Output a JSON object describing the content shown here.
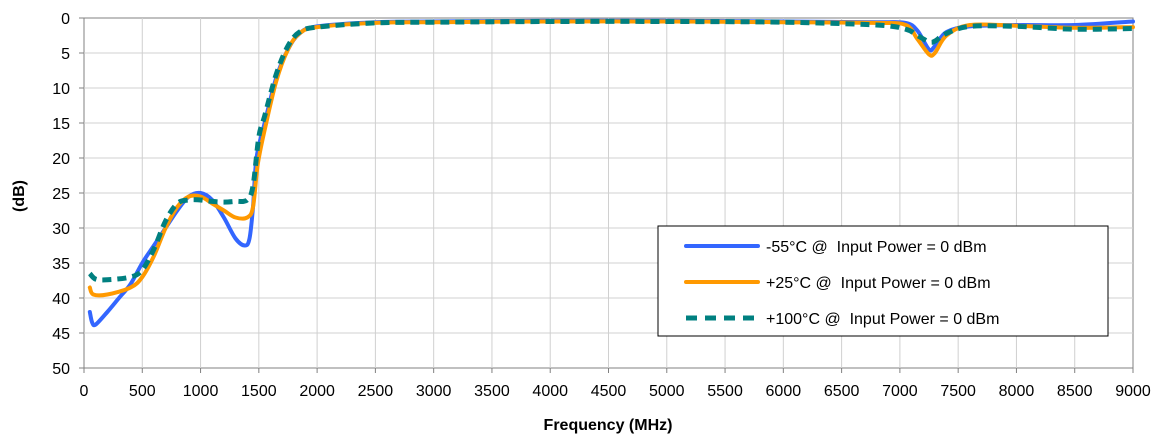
{
  "chart_data": {
    "type": "line",
    "xlabel": "Frequency (MHz)",
    "ylabel": "(dB)",
    "xlim": [
      0,
      9000
    ],
    "ylim": [
      0,
      50
    ],
    "y_reversed": true,
    "xticks": [
      "0",
      "500",
      "1000",
      "1500",
      "2000",
      "2500",
      "3000",
      "3500",
      "4000",
      "4500",
      "5000",
      "5500",
      "6000",
      "6500",
      "7000",
      "7500",
      "8000",
      "8500",
      "9000"
    ],
    "yticks": [
      "0",
      "5",
      "10",
      "15",
      "20",
      "25",
      "30",
      "35",
      "40",
      "45",
      "50"
    ],
    "grid": true,
    "legend_position": "right",
    "series": [
      {
        "name": "-55°C @  Input Power = 0 dBm",
        "color": "#3366ff",
        "style": "solid",
        "points": [
          [
            50,
            42
          ],
          [
            70,
            43.5
          ],
          [
            100,
            43.8
          ],
          [
            200,
            42
          ],
          [
            300,
            40
          ],
          [
            400,
            38
          ],
          [
            500,
            35
          ],
          [
            600,
            32.5
          ],
          [
            700,
            30
          ],
          [
            800,
            27.5
          ],
          [
            900,
            25.5
          ],
          [
            1000,
            25
          ],
          [
            1100,
            26
          ],
          [
            1200,
            28.5
          ],
          [
            1300,
            31.5
          ],
          [
            1380,
            32.5
          ],
          [
            1420,
            31.5
          ],
          [
            1450,
            27
          ],
          [
            1480,
            20
          ],
          [
            1550,
            15
          ],
          [
            1650,
            8.5
          ],
          [
            1750,
            4.5
          ],
          [
            1850,
            2.2
          ],
          [
            2000,
            1.2
          ],
          [
            2500,
            0.6
          ],
          [
            3000,
            0.5
          ],
          [
            4000,
            0.4
          ],
          [
            5000,
            0.4
          ],
          [
            6000,
            0.5
          ],
          [
            6800,
            0.6
          ],
          [
            7050,
            0.7
          ],
          [
            7150,
            1.8
          ],
          [
            7250,
            4.5
          ],
          [
            7300,
            4
          ],
          [
            7400,
            2
          ],
          [
            7600,
            1.2
          ],
          [
            8000,
            1
          ],
          [
            8500,
            1
          ],
          [
            9000,
            0.5
          ]
        ]
      },
      {
        "name": "+25°C @  Input Power = 0 dBm",
        "color": "#ff9900",
        "style": "solid",
        "points": [
          [
            50,
            38.5
          ],
          [
            80,
            39.5
          ],
          [
            200,
            39.5
          ],
          [
            400,
            38.5
          ],
          [
            500,
            37
          ],
          [
            600,
            34
          ],
          [
            700,
            30
          ],
          [
            800,
            27
          ],
          [
            900,
            25.5
          ],
          [
            1000,
            25.5
          ],
          [
            1100,
            26.5
          ],
          [
            1200,
            27.5
          ],
          [
            1300,
            28.5
          ],
          [
            1400,
            28.5
          ],
          [
            1450,
            27
          ],
          [
            1490,
            21
          ],
          [
            1550,
            16
          ],
          [
            1650,
            9
          ],
          [
            1750,
            4.5
          ],
          [
            1850,
            2.2
          ],
          [
            2000,
            1.3
          ],
          [
            2500,
            0.7
          ],
          [
            3000,
            0.6
          ],
          [
            4000,
            0.5
          ],
          [
            5000,
            0.5
          ],
          [
            6000,
            0.6
          ],
          [
            6800,
            0.7
          ],
          [
            7050,
            1
          ],
          [
            7150,
            3
          ],
          [
            7250,
            5.2
          ],
          [
            7300,
            5
          ],
          [
            7400,
            2.5
          ],
          [
            7600,
            1
          ],
          [
            8000,
            1.1
          ],
          [
            8500,
            1.4
          ],
          [
            9000,
            1.3
          ]
        ]
      },
      {
        "name": "+100°C @  Input Power = 0 dBm",
        "color": "#008080",
        "style": "dashed",
        "points": [
          [
            50,
            36.5
          ],
          [
            100,
            37.3
          ],
          [
            200,
            37.4
          ],
          [
            400,
            37
          ],
          [
            500,
            36
          ],
          [
            600,
            33
          ],
          [
            700,
            29
          ],
          [
            800,
            26.5
          ],
          [
            900,
            26
          ],
          [
            1000,
            26
          ],
          [
            1100,
            26.2
          ],
          [
            1200,
            26.3
          ],
          [
            1300,
            26.2
          ],
          [
            1400,
            26
          ],
          [
            1450,
            24
          ],
          [
            1500,
            17
          ],
          [
            1550,
            14
          ],
          [
            1650,
            8
          ],
          [
            1750,
            4
          ],
          [
            1850,
            2
          ],
          [
            2000,
            1.3
          ],
          [
            2500,
            0.7
          ],
          [
            3000,
            0.6
          ],
          [
            4000,
            0.5
          ],
          [
            5000,
            0.5
          ],
          [
            6000,
            0.6
          ],
          [
            6800,
            1
          ],
          [
            7050,
            1.6
          ],
          [
            7150,
            2.5
          ],
          [
            7250,
            3.4
          ],
          [
            7300,
            3.3
          ],
          [
            7400,
            2.2
          ],
          [
            7600,
            1.2
          ],
          [
            8000,
            1.2
          ],
          [
            8500,
            1.6
          ],
          [
            9000,
            1.5
          ]
        ]
      }
    ]
  }
}
